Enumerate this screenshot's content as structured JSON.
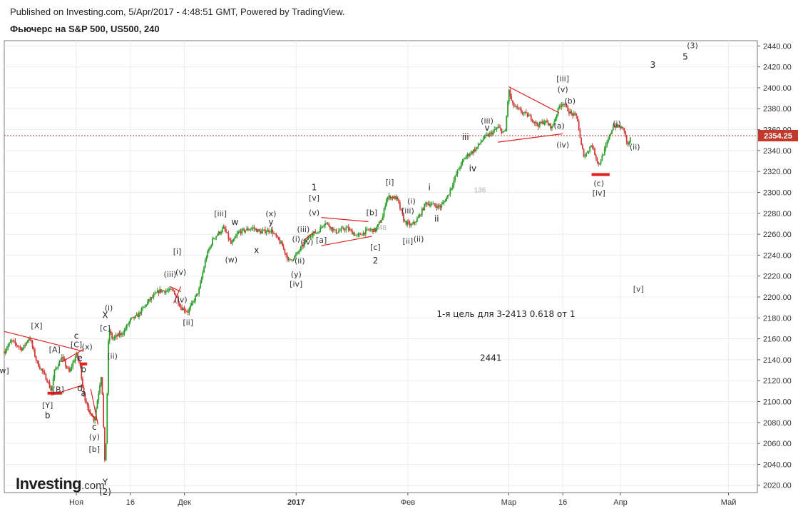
{
  "header": {
    "published": "Published on Investing.com, 5/Apr/2017 - 4:48:51 GMT, Powered by TradingView.",
    "title": "Фьючерс на S&P 500, US500, 240"
  },
  "logo": {
    "name": "Investing",
    "suffix": ".com"
  },
  "colors": {
    "up": "#2a9d2a",
    "down": "#d23c3c",
    "annotation_line": "#e02020",
    "price_line": "#c0392b",
    "grid": "#ececec",
    "axis": "#555555"
  },
  "chart_data": {
    "type": "candlestick",
    "symbol": "US500",
    "interval": "240",
    "ylim": [
      2013,
      2445
    ],
    "y_ticks": [
      2020,
      2040,
      2060,
      2080,
      2100,
      2120,
      2140,
      2160,
      2180,
      2200,
      2220,
      2240,
      2260,
      2280,
      2300,
      2320,
      2340,
      2360,
      2380,
      2400,
      2420,
      2440
    ],
    "y_tick_labels": [
      "2020.00",
      "2040.00",
      "2060.00",
      "2080.00",
      "2100.00",
      "2120.00",
      "2140.00",
      "2160.00",
      "2180.00",
      "2200.00",
      "2220.00",
      "2240.00",
      "2260.00",
      "2280.00",
      "2300.00",
      "2320.00",
      "2340.00",
      "2360.00",
      "2380.00",
      "2400.00",
      "2420.00",
      "2440.00"
    ],
    "x_labels": [
      {
        "label": "Ноя",
        "date": "2016-11-01"
      },
      {
        "label": "16",
        "date": "2016-11-16"
      },
      {
        "label": "Дек",
        "date": "2016-12-01"
      },
      {
        "label": "2017",
        "date": "2017-01-01"
      },
      {
        "label": "Фев",
        "date": "2017-02-01"
      },
      {
        "label": "Мар",
        "date": "2017-03-01"
      },
      {
        "label": "16",
        "date": "2017-03-16"
      },
      {
        "label": "Апр",
        "date": "2017-04-01"
      },
      {
        "label": "Май",
        "date": "2017-05-01"
      }
    ],
    "x_range": [
      "2016-10-12",
      "2017-05-09"
    ],
    "last_price": 2354.25,
    "last_price_label": "2354.25",
    "path": [
      [
        "2016-10-12",
        2148
      ],
      [
        "2016-10-14",
        2158
      ],
      [
        "2016-10-17",
        2150
      ],
      [
        "2016-10-19",
        2162
      ],
      [
        "2016-10-21",
        2138
      ],
      [
        "2016-10-24",
        2120
      ],
      [
        "2016-10-25",
        2110
      ],
      [
        "2016-10-26",
        2130
      ],
      [
        "2016-10-28",
        2142
      ],
      [
        "2016-10-30",
        2128
      ],
      [
        "2016-11-01",
        2145
      ],
      [
        "2016-11-02",
        2135
      ],
      [
        "2016-11-03",
        2108
      ],
      [
        "2016-11-04",
        2095
      ],
      [
        "2016-11-06",
        2082
      ],
      [
        "2016-11-07",
        2105
      ],
      [
        "2016-11-08",
        2128
      ],
      [
        "2016-11-09",
        2030
      ],
      [
        "2016-11-10",
        2170
      ],
      [
        "2016-11-11",
        2160
      ],
      [
        "2016-11-14",
        2166
      ],
      [
        "2016-11-16",
        2178
      ],
      [
        "2016-11-18",
        2182
      ],
      [
        "2016-11-21",
        2196
      ],
      [
        "2016-11-24",
        2206
      ],
      [
        "2016-11-28",
        2206
      ],
      [
        "2016-11-30",
        2190
      ],
      [
        "2016-12-02",
        2186
      ],
      [
        "2016-12-05",
        2206
      ],
      [
        "2016-12-07",
        2238
      ],
      [
        "2016-12-09",
        2256
      ],
      [
        "2016-12-12",
        2266
      ],
      [
        "2016-12-14",
        2250
      ],
      [
        "2016-12-16",
        2262
      ],
      [
        "2016-12-20",
        2266
      ],
      [
        "2016-12-22",
        2262
      ],
      [
        "2016-12-25",
        2264
      ],
      [
        "2016-12-28",
        2250
      ],
      [
        "2016-12-30",
        2234
      ],
      [
        "2017-01-01",
        2240
      ],
      [
        "2017-01-03",
        2250
      ],
      [
        "2017-01-05",
        2260
      ],
      [
        "2017-01-07",
        2262
      ],
      [
        "2017-01-09",
        2272
      ],
      [
        "2017-01-12",
        2262
      ],
      [
        "2017-01-15",
        2266
      ],
      [
        "2017-01-18",
        2258
      ],
      [
        "2017-01-21",
        2264
      ],
      [
        "2017-01-23",
        2264
      ],
      [
        "2017-01-25",
        2276
      ],
      [
        "2017-01-26",
        2294
      ],
      [
        "2017-01-27",
        2296
      ],
      [
        "2017-01-29",
        2294
      ],
      [
        "2017-01-31",
        2272
      ],
      [
        "2017-02-02",
        2268
      ],
      [
        "2017-02-04",
        2276
      ],
      [
        "2017-02-06",
        2290
      ],
      [
        "2017-02-08",
        2288
      ],
      [
        "2017-02-10",
        2286
      ],
      [
        "2017-02-12",
        2296
      ],
      [
        "2017-02-15",
        2322
      ],
      [
        "2017-02-17",
        2334
      ],
      [
        "2017-02-20",
        2342
      ],
      [
        "2017-02-22",
        2352
      ],
      [
        "2017-02-24",
        2356
      ],
      [
        "2017-02-26",
        2362
      ],
      [
        "2017-02-28",
        2356
      ],
      [
        "2017-03-01",
        2398
      ],
      [
        "2017-03-02",
        2384
      ],
      [
        "2017-03-04",
        2378
      ],
      [
        "2017-03-07",
        2372
      ],
      [
        "2017-03-09",
        2364
      ],
      [
        "2017-03-11",
        2368
      ],
      [
        "2017-03-13",
        2362
      ],
      [
        "2017-03-15",
        2382
      ],
      [
        "2017-03-16",
        2386
      ],
      [
        "2017-03-18",
        2376
      ],
      [
        "2017-03-20",
        2372
      ],
      [
        "2017-03-21",
        2346
      ],
      [
        "2017-03-22",
        2334
      ],
      [
        "2017-03-24",
        2346
      ],
      [
        "2017-03-26",
        2326
      ],
      [
        "2017-03-28",
        2344
      ],
      [
        "2017-03-30",
        2364
      ],
      [
        "2017-04-01",
        2362
      ],
      [
        "2017-04-02",
        2360
      ],
      [
        "2017-04-03",
        2344
      ],
      [
        "2017-04-04",
        2354
      ]
    ],
    "annotations": [
      {
        "text": "[X]",
        "date": "2016-10-21",
        "price": 2170
      },
      {
        "text": "[A]",
        "date": "2016-10-26",
        "price": 2147
      },
      {
        "text": "c",
        "date": "2016-11-01",
        "price": 2160
      },
      {
        "text": "[C]",
        "date": "2016-11-01",
        "price": 2152
      },
      {
        "text": "(x)",
        "date": "2016-11-04",
        "price": 2150
      },
      {
        "text": "e",
        "date": "2016-11-02",
        "price": 2139
      },
      {
        "text": "b",
        "date": "2016-11-03",
        "price": 2128
      },
      {
        "text": "w]",
        "date": "2016-10-12",
        "price": 2127
      },
      {
        "text": "[B]",
        "date": "2016-10-27",
        "price": 2109
      },
      {
        "text": "d",
        "date": "2016-11-02",
        "price": 2110
      },
      {
        "text": "a",
        "date": "2016-11-03",
        "price": 2105
      },
      {
        "text": "[Y]",
        "date": "2016-10-24",
        "price": 2094
      },
      {
        "text": "b",
        "date": "2016-10-24",
        "price": 2084
      },
      {
        "text": "c",
        "date": "2016-11-06",
        "price": 2073
      },
      {
        "text": "(y)",
        "date": "2016-11-06",
        "price": 2064
      },
      {
        "text": "[b]",
        "date": "2016-11-06",
        "price": 2052
      },
      {
        "text": "Y",
        "date": "2016-11-09",
        "price": 2020
      },
      {
        "text": "(2)",
        "date": "2016-11-09",
        "price": 2011
      },
      {
        "text": "X",
        "date": "2016-11-09",
        "price": 2180
      },
      {
        "text": "[c]",
        "date": "2016-11-09",
        "price": 2168
      },
      {
        "text": "(i)",
        "date": "2016-11-10",
        "price": 2187
      },
      {
        "text": "(ii)",
        "date": "2016-11-11",
        "price": 2141
      },
      {
        "text": "[i]",
        "date": "2016-11-29",
        "price": 2241
      },
      {
        "text": "(iii)",
        "date": "2016-11-27",
        "price": 2219
      },
      {
        "text": "(v)",
        "date": "2016-11-30",
        "price": 2221
      },
      {
        "text": "(iv)",
        "date": "2016-11-30",
        "price": 2195
      },
      {
        "text": "[ii]",
        "date": "2016-12-02",
        "price": 2173
      },
      {
        "text": "[iii]",
        "date": "2016-12-11",
        "price": 2277
      },
      {
        "text": "w",
        "date": "2016-12-15",
        "price": 2269
      },
      {
        "text": "(w)",
        "date": "2016-12-14",
        "price": 2233
      },
      {
        "text": "x",
        "date": "2016-12-21",
        "price": 2242
      },
      {
        "text": "(x)",
        "date": "2016-12-25",
        "price": 2277
      },
      {
        "text": "y",
        "date": "2016-12-25",
        "price": 2269
      },
      {
        "text": "(i)",
        "date": "2017-01-01",
        "price": 2253
      },
      {
        "text": "(iii)",
        "date": "2017-01-03",
        "price": 2262
      },
      {
        "text": "(v)",
        "date": "2017-01-06",
        "price": 2278
      },
      {
        "text": "(iv)",
        "date": "2017-01-04",
        "price": 2250
      },
      {
        "text": "[a]",
        "date": "2017-01-08",
        "price": 2252
      },
      {
        "text": "(ii)",
        "date": "2017-01-02",
        "price": 2232
      },
      {
        "text": "(y)",
        "date": "2017-01-01",
        "price": 2219
      },
      {
        "text": "[iv]",
        "date": "2017-01-01",
        "price": 2210
      },
      {
        "text": "1",
        "date": "2017-01-06",
        "price": 2302
      },
      {
        "text": "[v]",
        "date": "2017-01-06",
        "price": 2292
      },
      {
        "text": "[b]",
        "date": "2017-01-22",
        "price": 2278
      },
      {
        "text": "[c]",
        "date": "2017-01-23",
        "price": 2245
      },
      {
        "text": "2",
        "date": "2017-01-23",
        "price": 2232
      },
      {
        "text": "[i]",
        "date": "2017-01-27",
        "price": 2307
      },
      {
        "text": "(i)",
        "date": "2017-02-02",
        "price": 2289
      },
      {
        "text": "(iii)",
        "date": "2017-02-01",
        "price": 2280
      },
      {
        "text": "[ii]",
        "date": "2017-02-01",
        "price": 2251
      },
      {
        "text": "(ii)",
        "date": "2017-02-04",
        "price": 2253
      },
      {
        "text": "i",
        "date": "2017-02-07",
        "price": 2302
      },
      {
        "text": "ii",
        "date": "2017-02-09",
        "price": 2272
      },
      {
        "text": "iii",
        "date": "2017-02-17",
        "price": 2350
      },
      {
        "text": "iv",
        "date": "2017-02-19",
        "price": 2320
      },
      {
        "text": "(iii)",
        "date": "2017-02-23",
        "price": 2366
      },
      {
        "text": "v",
        "date": "2017-02-23",
        "price": 2359
      },
      {
        "text": "(a)",
        "date": "2017-03-15",
        "price": 2361
      },
      {
        "text": "(iv)",
        "date": "2017-03-16",
        "price": 2343
      },
      {
        "text": "[iii]",
        "date": "2017-03-16",
        "price": 2406
      },
      {
        "text": "(v)",
        "date": "2017-03-16",
        "price": 2396
      },
      {
        "text": "(b)",
        "date": "2017-03-18",
        "price": 2385
      },
      {
        "text": "(c)",
        "date": "2017-03-26",
        "price": 2306
      },
      {
        "text": "[iv]",
        "date": "2017-03-26",
        "price": 2297
      },
      {
        "text": "(i)",
        "date": "2017-03-31",
        "price": 2363
      },
      {
        "text": "(ii)",
        "date": "2017-04-05",
        "price": 2341
      },
      {
        "text": "3",
        "date": "2017-04-10",
        "price": 2419
      },
      {
        "text": "5",
        "date": "2017-04-19",
        "price": 2427
      },
      {
        "text": "(3)",
        "date": "2017-04-21",
        "price": 2438
      },
      {
        "text": "[v]",
        "date": "2017-04-06",
        "price": 2205
      }
    ],
    "faint_labels": [
      {
        "text": "48",
        "date": "2017-01-25",
        "price": 2264
      },
      {
        "text": "136",
        "date": "2017-02-21",
        "price": 2300
      }
    ],
    "notes": [
      {
        "text": "1-я цель для 3-2413 0.618 от 1",
        "date": "2017-02-09",
        "price": 2181
      },
      {
        "text": "2441",
        "date": "2017-02-21",
        "price": 2139
      }
    ],
    "lines": [
      {
        "from": [
          "2016-10-12",
          2167
        ],
        "to": [
          "2016-11-03",
          2148
        ]
      },
      {
        "from": [
          "2016-10-25",
          2106
        ],
        "to": [
          "2016-11-03",
          2116
        ]
      },
      {
        "from": [
          "2016-10-28",
          2138
        ],
        "to": [
          "2016-11-03",
          2150
        ]
      },
      {
        "from": [
          "2016-11-05",
          2112
        ],
        "to": [
          "2016-11-07",
          2078
        ]
      },
      {
        "from": [
          "2016-11-04",
          2093
        ],
        "to": [
          "2016-11-07",
          2081
        ]
      },
      {
        "from": [
          "2016-11-27",
          2210
        ],
        "to": [
          "2016-11-30",
          2205
        ]
      },
      {
        "from": [
          "2016-11-28",
          2194
        ],
        "to": [
          "2016-11-30",
          2210
        ]
      },
      {
        "from": [
          "2017-01-03",
          2254
        ],
        "to": [
          "2017-01-06",
          2262
        ]
      },
      {
        "from": [
          "2017-01-08",
          2276
        ],
        "to": [
          "2017-01-21",
          2272
        ]
      },
      {
        "from": [
          "2017-01-08",
          2249
        ],
        "to": [
          "2017-01-22",
          2258
        ]
      },
      {
        "from": [
          "2017-03-01",
          2401
        ],
        "to": [
          "2017-03-15",
          2376
        ]
      },
      {
        "from": [
          "2017-02-26",
          2348
        ],
        "to": [
          "2017-03-16",
          2356
        ]
      }
    ],
    "thick_marks": [
      {
        "from": [
          "2016-10-24",
          2108
        ],
        "to": [
          "2016-10-28",
          2108
        ]
      },
      {
        "from": [
          "2016-11-02",
          2136
        ],
        "to": [
          "2016-11-04",
          2136
        ]
      },
      {
        "from": [
          "2017-03-24",
          2317
        ],
        "to": [
          "2017-03-29",
          2317
        ]
      }
    ]
  }
}
